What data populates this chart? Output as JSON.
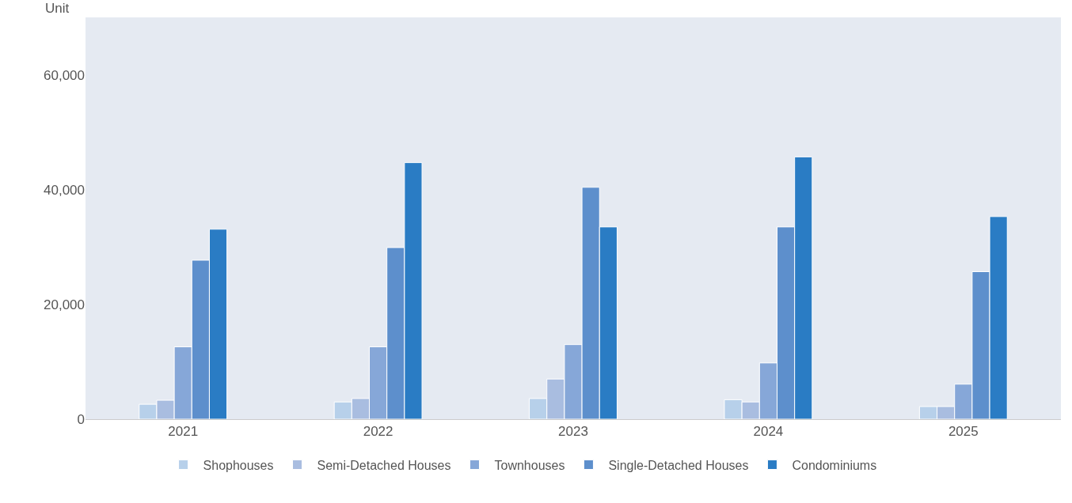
{
  "chart_data": {
    "type": "bar",
    "ylabel": "Unit",
    "categories": [
      "2021",
      "2022",
      "2023",
      "2024",
      "2025"
    ],
    "series": [
      {
        "name": "Shophouses",
        "color": "#b7d0ea",
        "values": [
          2600,
          3000,
          3600,
          3400,
          2200
        ]
      },
      {
        "name": "Semi-Detached Houses",
        "color": "#a9bde0",
        "values": [
          3300,
          3600,
          7000,
          3000,
          2200
        ]
      },
      {
        "name": "Townhouses",
        "color": "#86a7d8",
        "values": [
          12600,
          12600,
          13000,
          9800,
          6100
        ]
      },
      {
        "name": "Single-Detached Houses",
        "color": "#5d8fcc",
        "values": [
          27700,
          29900,
          40400,
          33500,
          25700
        ]
      },
      {
        "name": "Condominiums",
        "color": "#2a7cc4",
        "values": [
          33100,
          44700,
          33500,
          45700,
          35300
        ]
      }
    ],
    "ylim": [
      0,
      70000
    ],
    "yticks": [
      0,
      {
        "value": 20000,
        "label": "20,000"
      },
      {
        "value": 40000,
        "label": "40,000"
      },
      {
        "value": 60000,
        "label": "60,000"
      }
    ],
    "grid": false,
    "legend": "bottom"
  }
}
